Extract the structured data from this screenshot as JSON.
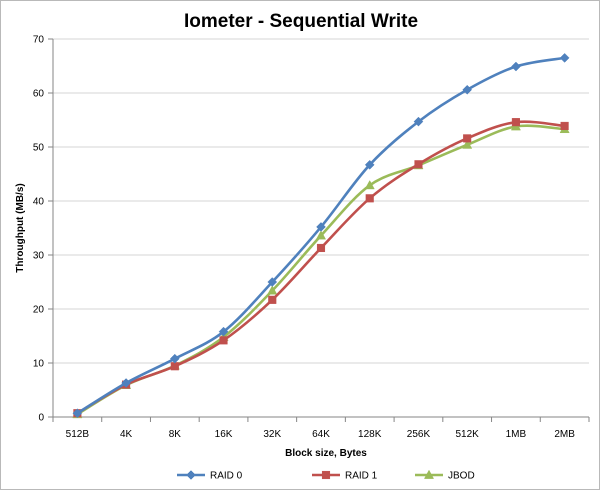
{
  "chart_data": {
    "type": "line",
    "title": "Iometer - Sequential Write",
    "xlabel": "Block size, Bytes",
    "ylabel": "Throughput (MB/s)",
    "ylim": [
      0,
      70
    ],
    "yticks": [
      0,
      10,
      20,
      30,
      40,
      50,
      60,
      70
    ],
    "categories": [
      "512B",
      "4K",
      "8K",
      "16K",
      "32K",
      "64K",
      "128K",
      "256K",
      "512K",
      "1MB",
      "2MB"
    ],
    "grid": true,
    "legend_position": "bottom",
    "series": [
      {
        "name": "RAID 0",
        "color": "#4f81bd",
        "marker": "diamond",
        "values": [
          0.7,
          6.3,
          10.8,
          15.8,
          25.0,
          35.2,
          46.7,
          54.7,
          60.6,
          64.9,
          66.5
        ]
      },
      {
        "name": "RAID 1",
        "color": "#c0504d",
        "marker": "square",
        "values": [
          0.7,
          6.0,
          9.4,
          14.2,
          21.7,
          31.3,
          40.5,
          46.8,
          51.6,
          54.6,
          53.9
        ]
      },
      {
        "name": "JBOD",
        "color": "#9bbb59",
        "marker": "triangle",
        "values": [
          0.5,
          5.9,
          9.5,
          14.8,
          23.4,
          33.6,
          42.9,
          46.6,
          50.4,
          53.8,
          53.3
        ]
      }
    ]
  }
}
